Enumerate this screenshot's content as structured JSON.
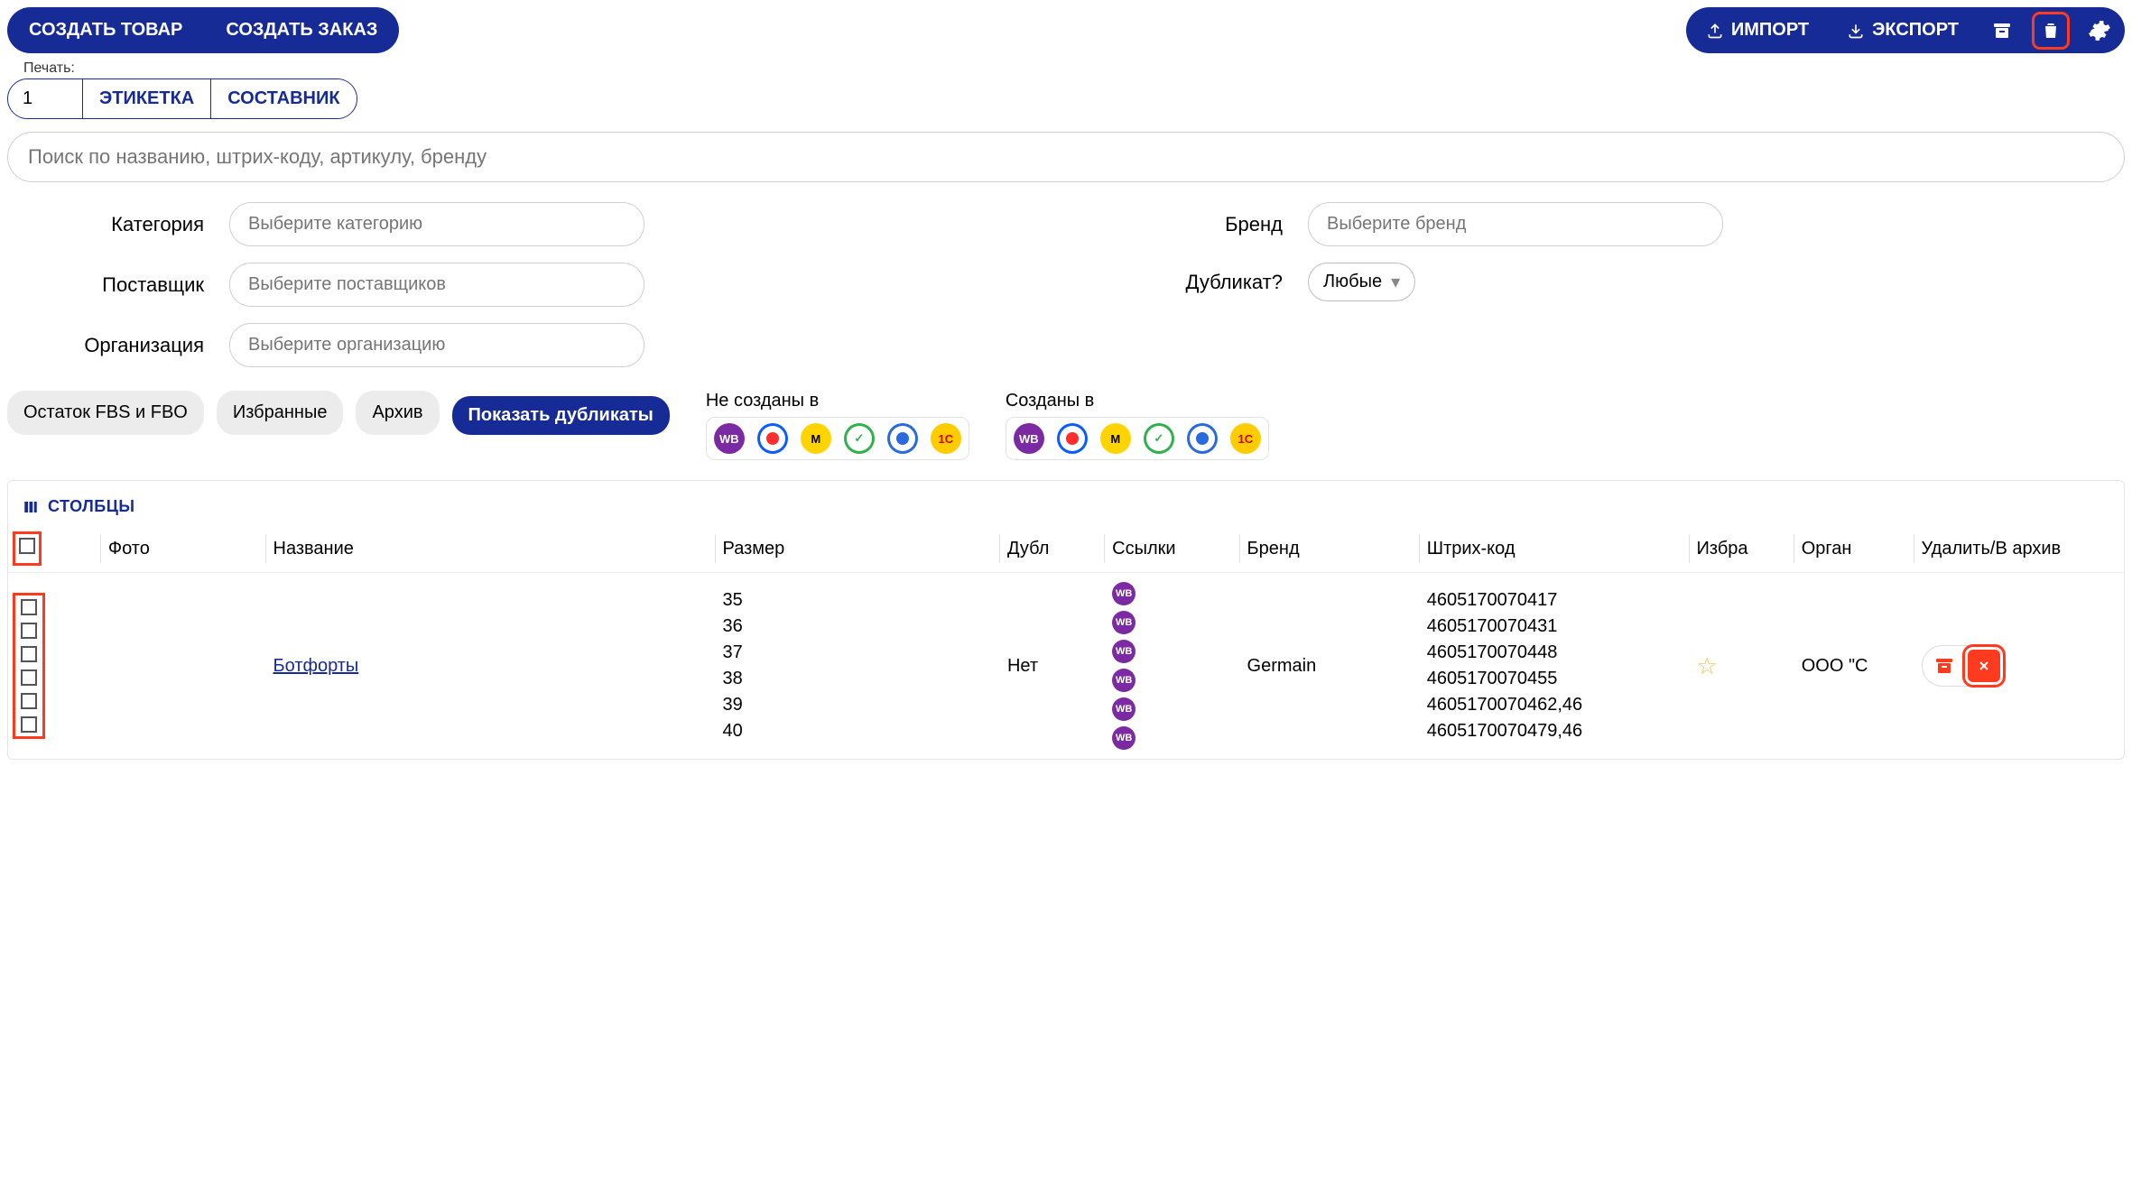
{
  "colors": {
    "primary": "#172b96",
    "highlight": "#ff3b1f",
    "chip_bg": "#ececec"
  },
  "topbar": {
    "create_product": "СОЗДАТЬ ТОВАР",
    "create_order": "СОЗДАТЬ ЗАКАЗ",
    "import": "ИМПОРТ",
    "export": "ЭКСПОРТ"
  },
  "print": {
    "label": "Печать:",
    "qty": "1",
    "etiketka": "ЭТИКЕТКА",
    "sostavnik": "СОСТАВНИК"
  },
  "search": {
    "placeholder": "Поиск по названию, штрих-коду, артикулу, бренду"
  },
  "filters": {
    "category_label": "Категория",
    "category_ph": "Выберите категорию",
    "brand_label": "Бренд",
    "brand_ph": "Выберите бренд",
    "supplier_label": "Поставщик",
    "supplier_ph": "Выберите поставщиков",
    "duplicate_label": "Дубликат?",
    "duplicate_value": "Любые",
    "org_label": "Организация",
    "org_ph": "Выберите организацию"
  },
  "chips": {
    "stock": "Остаток FBS и FBO",
    "favorites": "Избранные",
    "archive": "Архив",
    "show_dups": "Показать дубликаты"
  },
  "marketplaces": {
    "not_created_label": "Не созданы в",
    "created_label": "Созданы в",
    "items": [
      {
        "name": "wb",
        "label": "WB",
        "bg": "#7b2aa3"
      },
      {
        "name": "ozon",
        "label": "",
        "bg": "#ffffff",
        "ring": "#0a5cff",
        "inner": "#ff2d2d"
      },
      {
        "name": "ym",
        "label": "M",
        "bg": "#ffd400",
        "fg": "#000"
      },
      {
        "name": "sber",
        "label": "✓",
        "bg": "#ffffff",
        "ring": "#2fb24c",
        "fg": "#2fb24c"
      },
      {
        "name": "avito",
        "label": "",
        "bg": "#ffffff",
        "ring": "#2a6adf",
        "inner": "#2a6adf"
      },
      {
        "name": "1c",
        "label": "1C",
        "bg": "#ffcc00",
        "fg": "#d40000"
      }
    ]
  },
  "columns_btn": "СТОЛБЦЫ",
  "table": {
    "headers": {
      "photo": "Фото",
      "name": "Название",
      "size": "Размер",
      "dup": "Дубл",
      "links": "Ссылки",
      "brand": "Бренд",
      "barcode": "Штрих-код",
      "fav": "Избра",
      "org": "Орган",
      "actions": "Удалить/В архив"
    },
    "row": {
      "name": "Ботфорты",
      "sizes": [
        "35",
        "36",
        "37",
        "38",
        "39",
        "40"
      ],
      "dup": "Нет",
      "brand": "Germain",
      "barcodes": [
        "4605170070417",
        "4605170070431",
        "4605170070448",
        "4605170070455",
        "4605170070462,46",
        "4605170070479,46"
      ],
      "org": "ООО \"С"
    }
  }
}
